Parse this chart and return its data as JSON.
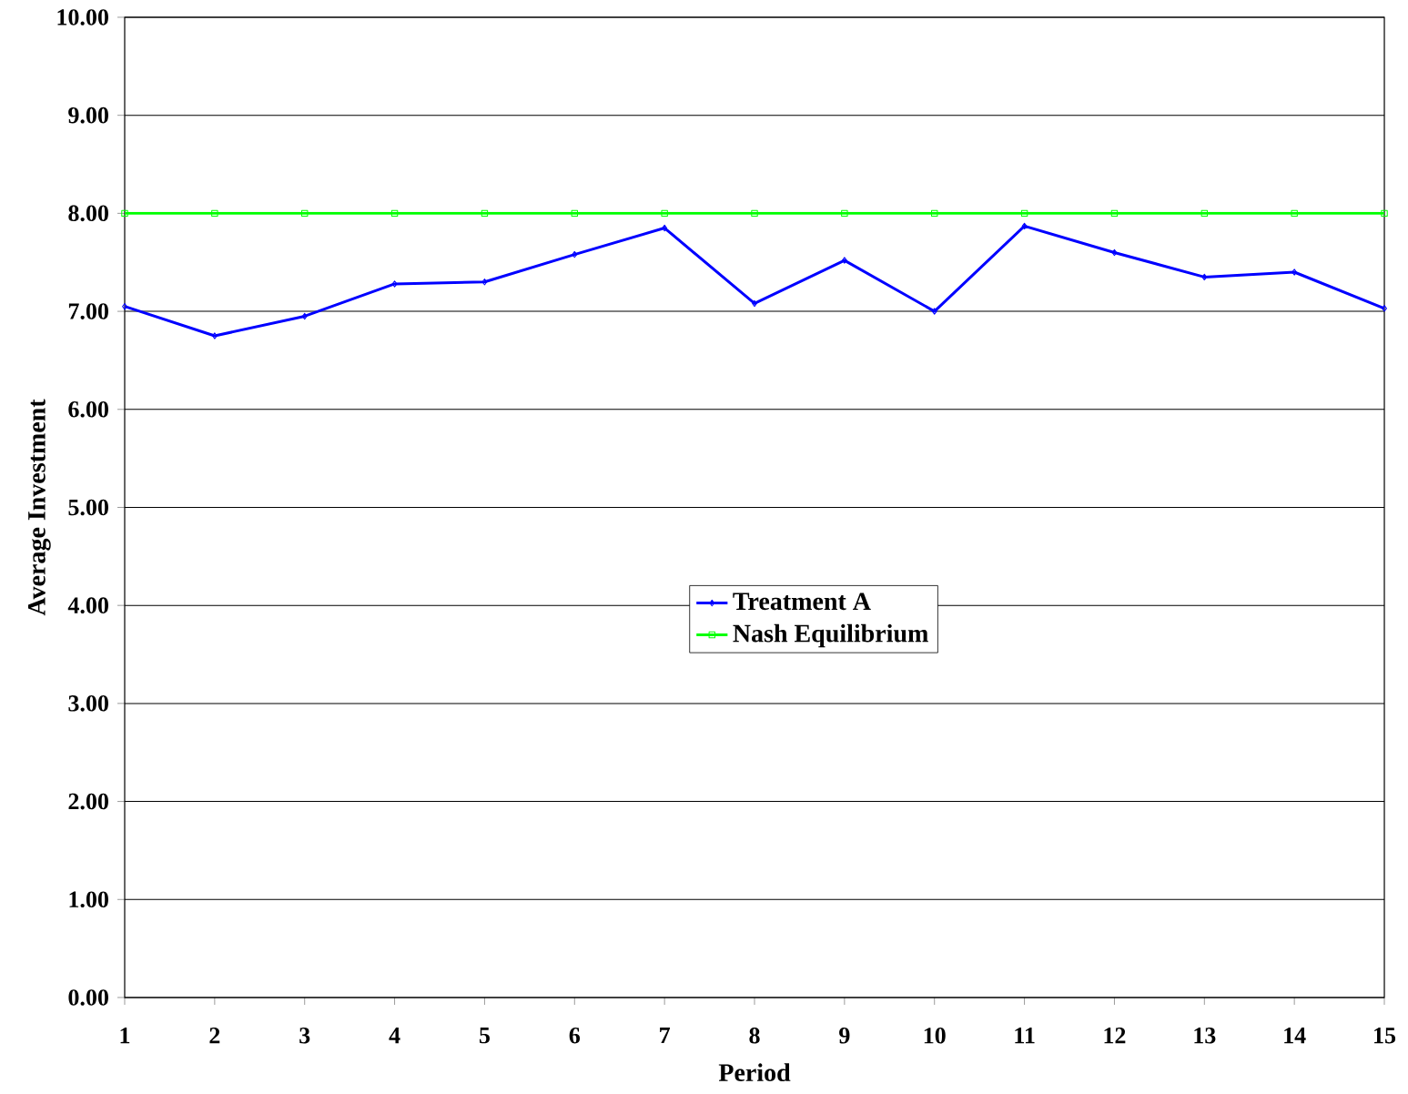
{
  "chart_data": {
    "type": "line",
    "xlabel": "Period",
    "ylabel": "Average Investment",
    "categories": [
      "1",
      "2",
      "3",
      "4",
      "5",
      "6",
      "7",
      "8",
      "9",
      "10",
      "11",
      "12",
      "13",
      "14",
      "15"
    ],
    "series": [
      {
        "name": "Treatment A",
        "color": "#0000ff",
        "marker": "diamond",
        "values": [
          7.05,
          6.75,
          6.95,
          7.28,
          7.3,
          7.58,
          7.85,
          7.08,
          7.52,
          7.0,
          7.87,
          7.6,
          7.35,
          7.4,
          7.03
        ]
      },
      {
        "name": "Nash Equilibrium",
        "color": "#00ff00",
        "marker": "square",
        "values": [
          8,
          8,
          8,
          8,
          8,
          8,
          8,
          8,
          8,
          8,
          8,
          8,
          8,
          8,
          8
        ]
      }
    ],
    "ylim": [
      0,
      10
    ],
    "yticks": [
      {
        "value": 0,
        "label": "0.00"
      },
      {
        "value": 1,
        "label": "1.00"
      },
      {
        "value": 2,
        "label": "2.00"
      },
      {
        "value": 3,
        "label": "3.00"
      },
      {
        "value": 4,
        "label": "4.00"
      },
      {
        "value": 5,
        "label": "5.00"
      },
      {
        "value": 6,
        "label": "6.00"
      },
      {
        "value": 7,
        "label": "7.00"
      },
      {
        "value": 8,
        "label": "8.00"
      },
      {
        "value": 9,
        "label": "9.00"
      },
      {
        "value": 10,
        "label": "10.00"
      }
    ],
    "grid": "y",
    "legend": "center",
    "line_style": "solid"
  }
}
